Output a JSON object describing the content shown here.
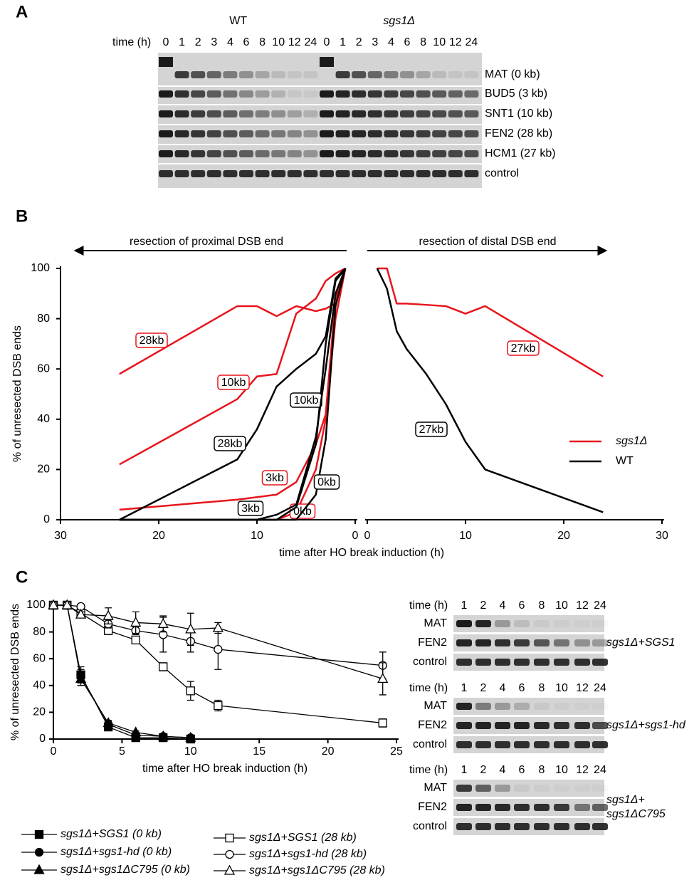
{
  "panel_labels": [
    "A",
    "B",
    "C"
  ],
  "gel_a": {
    "time_label": "time (h)",
    "groups": [
      {
        "name": "WT",
        "times": [
          0,
          1,
          2,
          3,
          4,
          6,
          8,
          10,
          12,
          24
        ]
      },
      {
        "name": "sgs1Δ",
        "times": [
          0,
          1,
          2,
          3,
          4,
          6,
          8,
          10,
          12,
          24
        ]
      }
    ],
    "rows": [
      "MAT (0 kb)",
      "BUD5 (3 kb)",
      "SNT1 (10 kb)",
      "FEN2 (28 kb)",
      "HCM1 (27 kb)",
      "control"
    ]
  },
  "chart_data": [
    {
      "type": "line",
      "title": "resection of proximal DSB end",
      "y_label": "% of unresected DSB ends",
      "x": [
        1,
        2,
        3,
        4,
        6,
        8,
        10,
        12,
        24
      ],
      "xlim": [
        30,
        0
      ],
      "xticks": [
        30,
        20,
        10,
        0
      ],
      "ylim": [
        0,
        100
      ],
      "yticks": [
        0,
        20,
        40,
        60,
        80,
        100
      ],
      "series": [
        {
          "label": "28kb",
          "color": "#e8141c",
          "values": [
            100,
            86,
            84,
            83,
            85,
            81,
            85,
            85,
            58
          ]
        },
        {
          "label": "10kb",
          "color": "#e8141c",
          "values": [
            100,
            98,
            95,
            88,
            82,
            58,
            57,
            48,
            22
          ]
        },
        {
          "label": "3kb",
          "color": "#e8141c",
          "values": [
            100,
            88,
            42,
            30,
            15,
            10,
            9,
            8,
            4
          ]
        },
        {
          "label": "0kb",
          "color": "#e8141c",
          "values": [
            100,
            80,
            40,
            20,
            3,
            0,
            0,
            0,
            0
          ]
        },
        {
          "label": "28kb",
          "color": "#000000",
          "values": [
            100,
            96,
            73,
            66,
            60,
            53,
            36,
            24,
            0
          ]
        },
        {
          "label": "10kb",
          "color": "#000000",
          "values": [
            100,
            95,
            70,
            30,
            5,
            0,
            0,
            0,
            0
          ]
        },
        {
          "label": "3kb",
          "color": "#000000",
          "values": [
            100,
            90,
            60,
            33,
            6,
            2,
            0,
            0,
            0
          ]
        },
        {
          "label": "0kb",
          "color": "#000000",
          "values": [
            100,
            85,
            32,
            10,
            0,
            0,
            0,
            0,
            0
          ]
        }
      ]
    },
    {
      "type": "line",
      "title": "resection of distal DSB end",
      "x_label": "time after HO break induction (h)",
      "x": [
        1,
        2,
        3,
        4,
        6,
        8,
        10,
        12,
        24
      ],
      "xlim": [
        0,
        30
      ],
      "xticks": [
        0,
        10,
        20,
        30
      ],
      "ylim": [
        0,
        100
      ],
      "legend": [
        {
          "name": "sgs1Δ",
          "color": "#e8141c"
        },
        {
          "name": "WT",
          "color": "#000000"
        }
      ],
      "series": [
        {
          "label": "27kb",
          "color": "#e8141c",
          "values": [
            100,
            100,
            86,
            86,
            85.5,
            85,
            82,
            85,
            57
          ]
        },
        {
          "label": "27kb",
          "color": "#000000",
          "values": [
            100,
            92,
            75,
            68,
            58,
            46,
            31,
            20,
            3
          ]
        }
      ]
    },
    {
      "type": "line",
      "x_label": "time after HO break induction (h)",
      "y_label": "% of unresected DSB ends",
      "x": [
        0,
        1,
        2,
        4,
        6,
        8,
        10,
        12,
        24
      ],
      "xlim": [
        0,
        25
      ],
      "xticks": [
        0,
        5,
        10,
        15,
        20,
        25
      ],
      "ylim": [
        0,
        100
      ],
      "yticks": [
        0,
        20,
        40,
        60,
        80,
        100
      ],
      "series": [
        {
          "name": "sgs1Δ+SGS1 (0 kb)",
          "marker": "square",
          "filled": true,
          "color": "#000000",
          "values": [
            100,
            100,
            48,
            9,
            1,
            1,
            0,
            null,
            null
          ],
          "errors": [
            0,
            0,
            6,
            2,
            1,
            1,
            0,
            null,
            null
          ]
        },
        {
          "name": "sgs1Δ+sgs1-hd (0 kb)",
          "marker": "circle",
          "filled": true,
          "color": "#000000",
          "values": [
            100,
            100,
            47,
            11,
            3,
            2,
            1,
            null,
            null
          ],
          "errors": [
            0,
            0,
            5,
            2,
            1,
            1,
            0,
            null,
            null
          ]
        },
        {
          "name": "sgs1Δ+sgs1ΔC795 (0 kb)",
          "marker": "triangle",
          "filled": true,
          "color": "#000000",
          "values": [
            100,
            100,
            45,
            12,
            5,
            2,
            1,
            null,
            null
          ],
          "errors": [
            0,
            0,
            5,
            2,
            1,
            1,
            0,
            null,
            null
          ]
        },
        {
          "name": "sgs1Δ+SGS1 (28 kb)",
          "marker": "square",
          "filled": false,
          "color": "#000000",
          "values": [
            100,
            100,
            94,
            81,
            74,
            54,
            36,
            25,
            12
          ],
          "errors": [
            0,
            0,
            1,
            3,
            2,
            3,
            7,
            4,
            3
          ]
        },
        {
          "name": "sgs1Δ+sgs1-hd (28 kb)",
          "marker": "circle",
          "filled": false,
          "color": "#000000",
          "values": [
            100,
            100,
            99,
            86,
            81,
            78,
            73,
            67,
            55
          ],
          "errors": [
            0,
            0,
            1,
            3,
            3,
            13,
            8,
            15,
            10
          ]
        },
        {
          "name": "sgs1Δ+sgs1ΔC795 (28 kb)",
          "marker": "triangle",
          "filled": false,
          "color": "#000000",
          "values": [
            100,
            100,
            93,
            92,
            87,
            86,
            82,
            83,
            45
          ],
          "errors": [
            0,
            0,
            2,
            6,
            8,
            6,
            12,
            4,
            12
          ]
        }
      ]
    }
  ],
  "blots_c": [
    {
      "time_label": "time (h)",
      "times": [
        1,
        2,
        4,
        6,
        8,
        10,
        12,
        24
      ],
      "rows": [
        "MAT",
        "FEN2",
        "control"
      ],
      "label": [
        "sgs1Δ+SGS1"
      ]
    },
    {
      "time_label": "time (h)",
      "times": [
        1,
        2,
        4,
        6,
        8,
        10,
        12,
        24
      ],
      "rows": [
        "MAT",
        "FEN2",
        "control"
      ],
      "label": [
        "sgs1Δ+sgs1-hd"
      ]
    },
    {
      "time_label": "time (h)",
      "times": [
        1,
        2,
        4,
        6,
        8,
        10,
        12,
        24
      ],
      "rows": [
        "MAT",
        "FEN2",
        "control"
      ],
      "label": [
        "sgs1Δ+",
        "sgs1ΔC795"
      ]
    }
  ]
}
